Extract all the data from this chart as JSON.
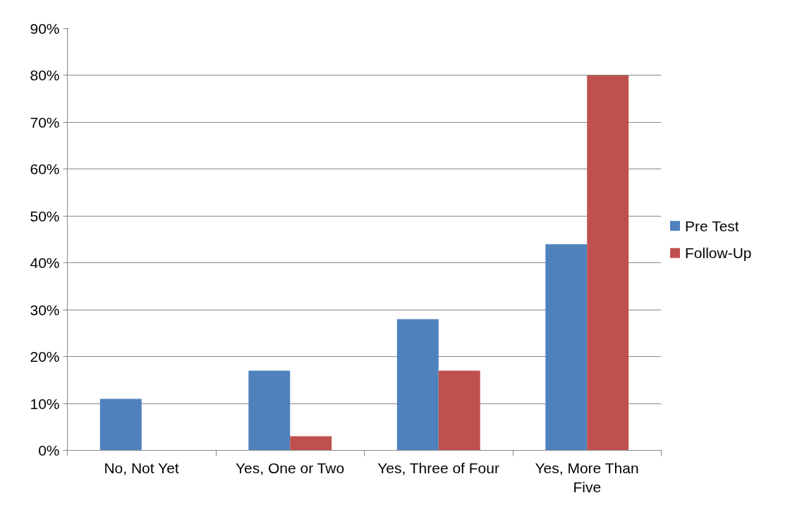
{
  "chart_data": {
    "type": "bar",
    "categories": [
      "No, Not Yet",
      "Yes, One or Two",
      "Yes, Three of Four",
      "Yes, More Than Five"
    ],
    "series": [
      {
        "name": "Pre Test",
        "color": "#4f81bd",
        "values": [
          11,
          17,
          28,
          44
        ]
      },
      {
        "name": "Follow-Up",
        "color": "#c0504d",
        "values": [
          0,
          3,
          17,
          80
        ]
      }
    ],
    "ylim": [
      0,
      90
    ],
    "yticks": [
      {
        "value": 0,
        "label": "0%"
      },
      {
        "value": 10,
        "label": "10%"
      },
      {
        "value": 20,
        "label": "20%"
      },
      {
        "value": 30,
        "label": "30%"
      },
      {
        "value": 40,
        "label": "40%"
      },
      {
        "value": 50,
        "label": "50%"
      },
      {
        "value": 60,
        "label": "60%"
      },
      {
        "value": 70,
        "label": "70%"
      },
      {
        "value": 80,
        "label": "80%"
      },
      {
        "value": 90,
        "label": "90%"
      }
    ],
    "grid": "y",
    "legend": "right"
  }
}
